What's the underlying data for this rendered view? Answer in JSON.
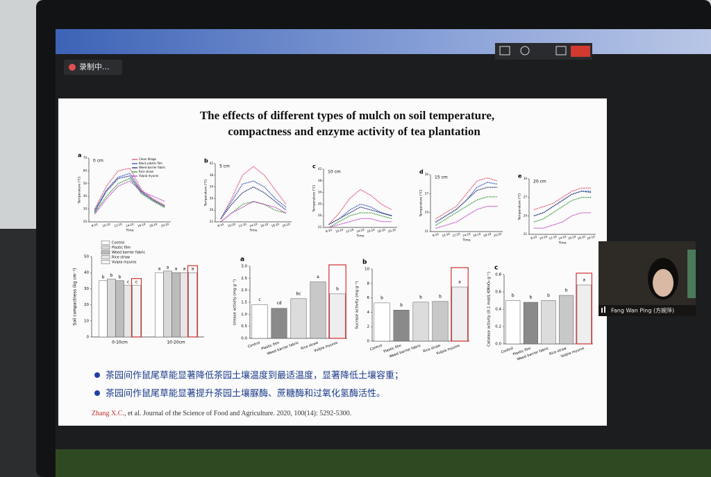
{
  "recording": {
    "label": "录制中..."
  },
  "participant": {
    "name": "Fang Wan Ping (方婉萍)"
  },
  "slide": {
    "title_lines": [
      "The effects of different types of mulch on soil temperature,",
      "compactness and enzyme activity of tea plantation"
    ],
    "bullets": [
      "茶园间作鼠尾草能显著降低茶园土壤温度到最适温度，显著降低土壤容重；",
      "茶园间作鼠尾草能显著提升茶园土壤脲酶、蔗糖酶和过氧化氢酶活性。"
    ],
    "citation_author": "Zhang X.C.",
    "citation_rest": ", et al. Journal of the Science of Food and Agriculture. 2020, 100(14): 5292-5300."
  },
  "temperature": {
    "y_label": "Temperature (°C)",
    "x_label": "Time",
    "times": [
      "8:10",
      "10:10",
      "12:10",
      "14:10",
      "16:10",
      "18:10",
      "20:10"
    ],
    "series": [
      {
        "name": "Clean tillage",
        "color": "#e0506e"
      },
      {
        "name": "Black plastic film",
        "color": "#3050c0"
      },
      {
        "name": "Weed barrier fabric",
        "color": "#1a2a6a"
      },
      {
        "name": "Rice straw",
        "color": "#3a9a3a"
      },
      {
        "name": "Vulpia myuros",
        "color": "#c040c0"
      }
    ],
    "panels": [
      {
        "letter": "a",
        "depth": "0 cm",
        "ylim": [
          20,
          70
        ],
        "yticks": [
          20,
          30,
          40,
          50,
          60,
          70
        ],
        "values": [
          [
            30,
            48,
            60,
            62,
            45,
            38,
            33
          ],
          [
            29,
            45,
            55,
            58,
            44,
            37,
            32
          ],
          [
            28,
            44,
            54,
            56,
            43,
            37,
            32
          ],
          [
            27,
            40,
            50,
            54,
            42,
            36,
            31
          ],
          [
            26,
            38,
            48,
            52,
            44,
            40,
            36
          ]
        ]
      },
      {
        "letter": "b",
        "depth": "5 cm",
        "ylim": [
          22,
          42
        ],
        "yticks": [
          22,
          26,
          30,
          34,
          38,
          42
        ],
        "values": [
          [
            23,
            30,
            38,
            41,
            38,
            33,
            28
          ],
          [
            23,
            29,
            35,
            36,
            34,
            30,
            27
          ],
          [
            23,
            28,
            32,
            34,
            32,
            29,
            26
          ],
          [
            22,
            25,
            28,
            29,
            28,
            26,
            25
          ],
          [
            22,
            25,
            27,
            29,
            28,
            27,
            25
          ]
        ]
      },
      {
        "letter": "c",
        "depth": "10 cm",
        "ylim": [
          22,
          42
        ],
        "yticks": [
          22,
          26,
          30,
          34,
          38,
          42
        ],
        "values": [
          [
            23,
            27,
            32,
            35,
            33,
            30,
            28
          ],
          [
            23,
            25,
            28,
            30,
            29,
            27,
            26
          ],
          [
            23,
            25,
            27,
            29,
            28,
            27,
            26
          ],
          [
            22,
            24,
            26,
            27,
            27,
            26,
            25
          ],
          [
            22,
            23,
            24,
            25,
            25,
            24,
            24
          ]
        ]
      },
      {
        "letter": "d",
        "depth": "15 cm",
        "ylim": [
          21,
          30
        ],
        "yticks": [
          21,
          24,
          27,
          30
        ],
        "values": [
          [
            23,
            24,
            25,
            27,
            29,
            29.5,
            29
          ],
          [
            22.5,
            23.5,
            24.5,
            26,
            28,
            28.8,
            28.5
          ],
          [
            22.5,
            23.5,
            24.5,
            26,
            27.5,
            28,
            28
          ],
          [
            22,
            23,
            24,
            25,
            26,
            26.5,
            26.5
          ],
          [
            21.5,
            22,
            22.5,
            23.5,
            24.5,
            25,
            25
          ]
        ]
      },
      {
        "letter": "e",
        "depth": "20 cm",
        "ylim": [
          21,
          30
        ],
        "yticks": [
          21,
          24,
          27,
          30
        ],
        "values": [
          [
            25,
            25.5,
            26,
            27,
            28,
            28.5,
            28.5
          ],
          [
            24,
            24.5,
            25.5,
            26.5,
            27.5,
            28,
            28
          ],
          [
            24,
            24.5,
            25.5,
            26.5,
            27.5,
            28,
            27.8
          ],
          [
            23,
            23.5,
            24.5,
            25.5,
            26.5,
            27,
            27
          ],
          [
            22,
            22,
            22.5,
            23,
            24,
            24.5,
            24.5
          ]
        ]
      }
    ]
  },
  "compactness": {
    "y_label": "Soil compactness (kg cm⁻²)",
    "ylim": [
      0,
      50
    ],
    "yticks": [
      0,
      10,
      20,
      30,
      40,
      50
    ],
    "categories": [
      "0-10cm",
      "10-20cm"
    ],
    "highlight": "#d03030",
    "series": [
      {
        "name": "Control",
        "fill": "#ffffff",
        "values": [
          35,
          40
        ],
        "letters": [
          "b",
          "a"
        ]
      },
      {
        "name": "Plastic film",
        "fill": "#d8d8d8",
        "values": [
          36,
          41
        ],
        "letters": [
          "b",
          "a"
        ]
      },
      {
        "name": "Weed barrier fabric",
        "fill": "#bcbcbc",
        "values": [
          35,
          40
        ],
        "letters": [
          "b",
          "a"
        ]
      },
      {
        "name": "Rice straw",
        "fill": "#e6e6e6",
        "values": [
          32,
          40
        ],
        "letters": [
          "c",
          "a"
        ]
      },
      {
        "name": "Vulpia myuros",
        "fill": "#f4f4f4",
        "values": [
          32,
          40
        ],
        "letters": [
          "c",
          "a"
        ]
      }
    ]
  },
  "enzymes": {
    "categories": [
      "Control",
      "Plastic film",
      "Weed barrier fabric",
      "Rice straw",
      "Vulpia myuros"
    ],
    "fills": [
      "#ffffff",
      "#8a8a8a",
      "#dcdcdc",
      "#c8c8c8",
      "#eeeeee"
    ],
    "highlight": "#d03030",
    "panels": [
      {
        "letter": "a",
        "y_label": "Urease activity (mg g⁻¹)",
        "ylim": [
          0,
          3
        ],
        "yticks": [
          {
            "value": 0,
            "label": "0.0"
          },
          {
            "value": 0.5,
            "label": "0.5"
          },
          {
            "value": 1,
            "label": "1.0"
          },
          {
            "value": 1.5,
            "label": "1.5"
          },
          {
            "value": 2,
            "label": "2.0"
          },
          {
            "value": 2.5,
            "label": "2.5"
          },
          {
            "value": 3,
            "label": "3.0"
          }
        ],
        "values": [
          1.4,
          1.25,
          1.65,
          2.35,
          1.85
        ],
        "letters": [
          "c",
          "cd",
          "bc",
          "a",
          "b"
        ]
      },
      {
        "letter": "b",
        "y_label": "Sucrase activity (mg g⁻¹)",
        "ylim": [
          0,
          10
        ],
        "yticks": [
          0,
          2,
          4,
          6,
          8,
          10
        ],
        "values": [
          5.3,
          4.3,
          5.4,
          5.5,
          7.5
        ],
        "letters": [
          "b",
          "b",
          "b",
          "b",
          "a"
        ]
      },
      {
        "letter": "c",
        "y_label": "Catalase activity (0.1 mol/L KMnO₄ g⁻¹)",
        "ylim": [
          0,
          0.8
        ],
        "yticks": [
          {
            "value": 0,
            "label": "0.0"
          },
          {
            "value": 0.2,
            "label": "0.2"
          },
          {
            "value": 0.4,
            "label": "0.4"
          },
          {
            "value": 0.6,
            "label": "0.6"
          },
          {
            "value": 0.8,
            "label": "0.8"
          }
        ],
        "values": [
          0.5,
          0.48,
          0.5,
          0.56,
          0.68
        ],
        "letters": [
          "b",
          "b",
          "b",
          "b",
          "a"
        ]
      }
    ]
  }
}
